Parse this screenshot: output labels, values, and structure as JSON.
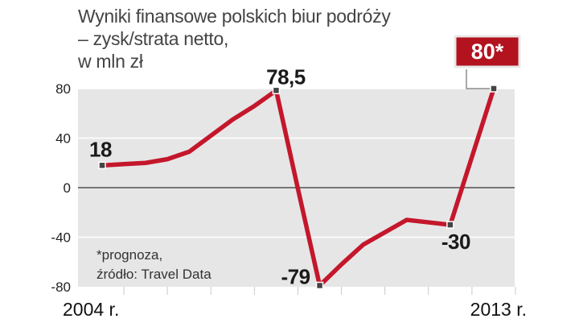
{
  "title_lines": [
    "Wyniki finansowe polskich biur podróży",
    "– zysk/strata netto,",
    "w mln zł"
  ],
  "note_lines": [
    "*prognoza,",
    "źródło: Travel Data"
  ],
  "chart_data": {
    "type": "line",
    "title": "Wyniki finansowe polskich biur podróży – zysk/strata netto, w mln zł",
    "xlabel": "",
    "ylabel": "",
    "x_axis_labels": [
      "2004 r.",
      "2013 r."
    ],
    "x_range": [
      2004,
      2013
    ],
    "ylim": [
      -80,
      80
    ],
    "y_ticks": [
      80,
      40,
      0,
      -40,
      -80
    ],
    "y_tick_labels": [
      "80",
      "40",
      "0",
      "-40",
      "-80"
    ],
    "grid": true,
    "line_color": "#c4172b",
    "series": [
      {
        "x": [
          2004,
          2004.5,
          2005,
          2005.5,
          2006,
          2006.5,
          2007,
          2007.5,
          2008,
          2008.5,
          2009,
          2009.5,
          2010,
          2010.5,
          2011,
          2011.5,
          2012,
          2012.5,
          2013
        ],
        "values": [
          18,
          19,
          20,
          23,
          29,
          42,
          55,
          66,
          78.5,
          -1,
          -79,
          -62,
          -46,
          -36,
          -26,
          -28,
          -30,
          25,
          80
        ]
      }
    ],
    "data_labels": [
      {
        "text": "18",
        "x": 2004,
        "y": 18
      },
      {
        "text": "78,5",
        "x": 2008,
        "y": 78.5
      },
      {
        "text": "-79",
        "x": 2009,
        "y": -79
      },
      {
        "text": "-30",
        "x": 2012,
        "y": -30
      },
      {
        "text": "80*",
        "x": 2013,
        "y": 80,
        "boxed": true
      }
    ]
  }
}
